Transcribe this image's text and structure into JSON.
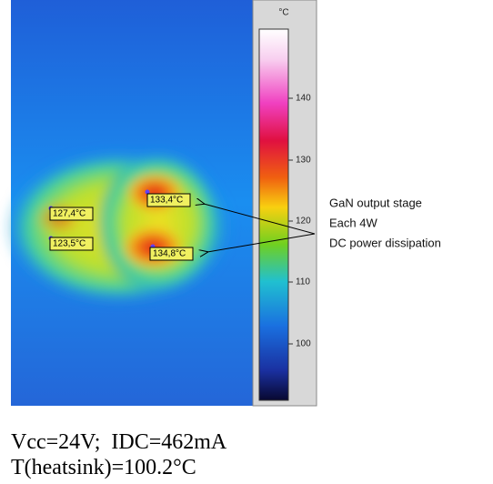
{
  "colorbar": {
    "unit": "°C",
    "ticks": [
      "140",
      "130",
      "120",
      "110",
      "100"
    ]
  },
  "spots": [
    "127,4°C",
    "123,5°C",
    "133,4°C",
    "134,8°C"
  ],
  "annotation": [
    "GaN output stage",
    "Each 4W",
    "DC power dissipation"
  ],
  "caption": [
    "Vcc=24V;  IDC=462mA",
    "T(heatsink)=100.2°C"
  ]
}
